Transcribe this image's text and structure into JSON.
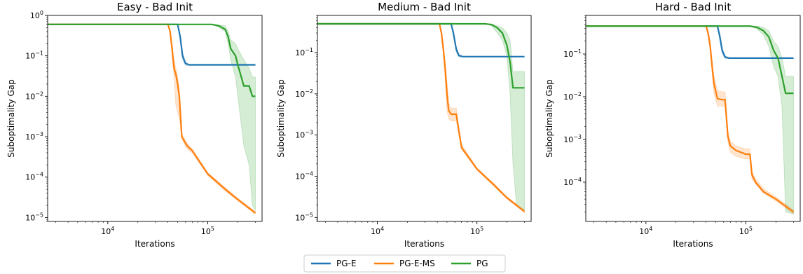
{
  "chart_data": [
    {
      "type": "line",
      "title": "Easy - Bad Init",
      "xlabel": "Iterations",
      "ylabel": "Suboptimality Gap",
      "xscale": "log",
      "yscale": "log",
      "xlim": [
        2500,
        350000
      ],
      "ylim": [
        8e-06,
        1.0
      ],
      "xticks": [
        {
          "v": 10000,
          "b": "10",
          "e": "4"
        },
        {
          "v": 100000,
          "b": "10",
          "e": "5"
        }
      ],
      "yticks": [
        {
          "v": 1,
          "b": "10",
          "e": "0"
        },
        {
          "v": 0.1,
          "b": "10",
          "e": "−1"
        },
        {
          "v": 0.01,
          "b": "10",
          "e": "−2"
        },
        {
          "v": 0.001,
          "b": "10",
          "e": "−3"
        },
        {
          "v": 0.0001,
          "b": "10",
          "e": "−4"
        },
        {
          "v": 1e-05,
          "b": "10",
          "e": "−5"
        }
      ],
      "series": [
        {
          "name": "PG-E",
          "color": "#1f77b4",
          "x": [
            2500,
            50000,
            53000,
            56000,
            60000,
            65000,
            300000
          ],
          "y": [
            0.6,
            0.6,
            0.3,
            0.1,
            0.065,
            0.06,
            0.06
          ],
          "band_upper": [
            0.6,
            0.6,
            0.35,
            0.12,
            0.07,
            0.062,
            0.062
          ],
          "band_lower": [
            0.6,
            0.6,
            0.25,
            0.08,
            0.058,
            0.058,
            0.058
          ]
        },
        {
          "name": "PG-E-MS",
          "color": "#ff7f0e",
          "x": [
            2500,
            40000,
            42000,
            44000,
            46000,
            48000,
            50000,
            52000,
            55000,
            62000,
            70000,
            100000,
            150000,
            200000,
            300000
          ],
          "y": [
            0.6,
            0.6,
            0.4,
            0.15,
            0.05,
            0.035,
            0.02,
            0.01,
            0.001,
            0.0006,
            0.00045,
            0.00012,
            5e-05,
            2.8e-05,
            1.3e-05
          ],
          "band_upper": [
            0.6,
            0.6,
            0.45,
            0.2,
            0.08,
            0.05,
            0.03,
            0.015,
            0.0012,
            0.0007,
            0.0005,
            0.00013,
            5.5e-05,
            3e-05,
            1.4e-05
          ],
          "band_lower": [
            0.6,
            0.6,
            0.35,
            0.1,
            0.03,
            0.006,
            0.004,
            0.003,
            0.0009,
            0.0005,
            0.0004,
            0.00011,
            4.5e-05,
            2.6e-05,
            1.2e-05
          ]
        },
        {
          "name": "PG",
          "color": "#2ca02c",
          "x": [
            2500,
            110000,
            130000,
            150000,
            160000,
            170000,
            190000,
            200000,
            230000,
            260000,
            280000,
            300000
          ],
          "y": [
            0.6,
            0.6,
            0.55,
            0.45,
            0.3,
            0.15,
            0.1,
            0.06,
            0.018,
            0.018,
            0.01,
            0.01
          ],
          "band_upper": [
            0.6,
            0.6,
            0.58,
            0.55,
            0.4,
            0.25,
            0.2,
            0.15,
            0.08,
            0.05,
            0.03,
            0.03
          ],
          "band_lower": [
            0.6,
            0.6,
            0.5,
            0.4,
            0.2,
            0.08,
            0.03,
            0.01,
            0.0006,
            0.0002,
            2e-05,
            1.5e-05
          ]
        }
      ]
    },
    {
      "type": "line",
      "title": "Medium - Bad Init",
      "xlabel": "Iterations",
      "ylabel": "Suboptimality Gap",
      "xscale": "log",
      "yscale": "log",
      "xlim": [
        2500,
        350000
      ],
      "ylim": [
        8e-06,
        0.8
      ],
      "xticks": [
        {
          "v": 10000,
          "b": "10",
          "e": "4"
        },
        {
          "v": 100000,
          "b": "10",
          "e": "5"
        }
      ],
      "yticks": [
        {
          "v": 0.1,
          "b": "10",
          "e": "−1"
        },
        {
          "v": 0.01,
          "b": "10",
          "e": "−2"
        },
        {
          "v": 0.001,
          "b": "10",
          "e": "−3"
        },
        {
          "v": 0.0001,
          "b": "10",
          "e": "−4"
        },
        {
          "v": 1e-05,
          "b": "10",
          "e": "−5"
        }
      ],
      "series": [
        {
          "name": "PG-E",
          "color": "#1f77b4",
          "x": [
            2500,
            55000,
            58000,
            62000,
            66000,
            72000,
            300000
          ],
          "y": [
            0.5,
            0.5,
            0.3,
            0.12,
            0.085,
            0.08,
            0.08
          ],
          "band_upper": [
            0.5,
            0.5,
            0.35,
            0.14,
            0.09,
            0.082,
            0.082
          ],
          "band_lower": [
            0.5,
            0.5,
            0.25,
            0.1,
            0.078,
            0.078,
            0.078
          ]
        },
        {
          "name": "PG-E-MS",
          "color": "#ff7f0e",
          "x": [
            2500,
            42000,
            44000,
            46000,
            48000,
            50000,
            52000,
            55000,
            62000,
            66000,
            70000,
            100000,
            150000,
            200000,
            300000
          ],
          "y": [
            0.5,
            0.5,
            0.3,
            0.12,
            0.04,
            0.01,
            0.004,
            0.0032,
            0.0032,
            0.0012,
            0.0005,
            0.00015,
            6e-05,
            3e-05,
            1.4e-05
          ],
          "band_upper": [
            0.5,
            0.5,
            0.35,
            0.15,
            0.06,
            0.02,
            0.006,
            0.0045,
            0.0045,
            0.0015,
            0.0006,
            0.00016,
            6.5e-05,
            3.2e-05,
            1.5e-05
          ],
          "band_lower": [
            0.5,
            0.5,
            0.25,
            0.09,
            0.02,
            0.004,
            0.0025,
            0.0022,
            0.0022,
            0.001,
            0.00045,
            0.00014,
            5.5e-05,
            2.8e-05,
            1.3e-05
          ]
        },
        {
          "name": "PG",
          "color": "#2ca02c",
          "x": [
            2500,
            120000,
            140000,
            160000,
            180000,
            200000,
            215000,
            230000,
            250000,
            300000
          ],
          "y": [
            0.5,
            0.5,
            0.48,
            0.4,
            0.3,
            0.15,
            0.06,
            0.014,
            0.014,
            0.014
          ],
          "band_upper": [
            0.5,
            0.5,
            0.5,
            0.45,
            0.4,
            0.3,
            0.2,
            0.035,
            0.035,
            0.035
          ],
          "band_lower": [
            0.5,
            0.5,
            0.45,
            0.3,
            0.2,
            0.08,
            0.01,
            0.0002,
            2e-05,
            1.5e-05
          ]
        }
      ]
    },
    {
      "type": "line",
      "title": "Hard - Bad Init",
      "xlabel": "Iterations",
      "ylabel": "Suboptimality Gap",
      "xscale": "log",
      "yscale": "log",
      "xlim": [
        2500,
        350000
      ],
      "ylim": [
        1.2e-05,
        0.8
      ],
      "xticks": [
        {
          "v": 10000,
          "b": "10",
          "e": "4"
        },
        {
          "v": 100000,
          "b": "10",
          "e": "5"
        }
      ],
      "yticks": [
        {
          "v": 0.1,
          "b": "10",
          "e": "−1"
        },
        {
          "v": 0.01,
          "b": "10",
          "e": "−2"
        },
        {
          "v": 0.001,
          "b": "10",
          "e": "−3"
        },
        {
          "v": 0.0001,
          "b": "10",
          "e": "−4"
        }
      ],
      "series": [
        {
          "name": "PG-E",
          "color": "#1f77b4",
          "x": [
            2500,
            52000,
            55000,
            58000,
            62000,
            68000,
            300000
          ],
          "y": [
            0.45,
            0.45,
            0.25,
            0.12,
            0.085,
            0.08,
            0.08
          ],
          "band_upper": [
            0.45,
            0.45,
            0.3,
            0.14,
            0.09,
            0.082,
            0.082
          ],
          "band_lower": [
            0.45,
            0.45,
            0.2,
            0.1,
            0.078,
            0.078,
            0.078
          ]
        },
        {
          "name": "PG-E-MS",
          "color": "#ff7f0e",
          "x": [
            2500,
            40000,
            42000,
            44000,
            46000,
            48000,
            52000,
            58000,
            62000,
            66000,
            70000,
            80000,
            100000,
            110000,
            115000,
            125000,
            150000,
            200000,
            300000
          ],
          "y": [
            0.45,
            0.45,
            0.3,
            0.15,
            0.05,
            0.02,
            0.009,
            0.0085,
            0.0085,
            0.0012,
            0.0007,
            0.00055,
            0.00045,
            0.00045,
            0.00015,
            0.0001,
            6e-05,
            4e-05,
            2e-05
          ],
          "band_upper": [
            0.45,
            0.45,
            0.35,
            0.18,
            0.07,
            0.03,
            0.014,
            0.013,
            0.013,
            0.0016,
            0.0009,
            0.0007,
            0.0006,
            0.0006,
            0.00018,
            0.00012,
            7e-05,
            4.5e-05,
            2.2e-05
          ],
          "band_lower": [
            0.45,
            0.45,
            0.25,
            0.12,
            0.035,
            0.012,
            0.006,
            0.006,
            0.006,
            0.0009,
            0.0005,
            0.0004,
            0.00035,
            0.00035,
            0.00012,
            9e-05,
            5.5e-05,
            3.6e-05,
            1.8e-05
          ]
        },
        {
          "name": "PG",
          "color": "#2ca02c",
          "x": [
            2500,
            110000,
            130000,
            150000,
            170000,
            190000,
            210000,
            230000,
            250000,
            300000
          ],
          "y": [
            0.45,
            0.45,
            0.42,
            0.35,
            0.25,
            0.12,
            0.08,
            0.03,
            0.012,
            0.012
          ],
          "band_upper": [
            0.45,
            0.45,
            0.45,
            0.42,
            0.35,
            0.2,
            0.15,
            0.08,
            0.03,
            0.03
          ],
          "band_lower": [
            0.45,
            0.45,
            0.38,
            0.28,
            0.15,
            0.05,
            0.03,
            0.006,
            2e-05,
            1.8e-05
          ]
        }
      ]
    }
  ],
  "legend": {
    "position": "bottom-center",
    "items": [
      {
        "label": "PG-E",
        "color": "#1f77b4"
      },
      {
        "label": "PG-E-MS",
        "color": "#ff7f0e"
      },
      {
        "label": "PG",
        "color": "#2ca02c"
      }
    ]
  }
}
